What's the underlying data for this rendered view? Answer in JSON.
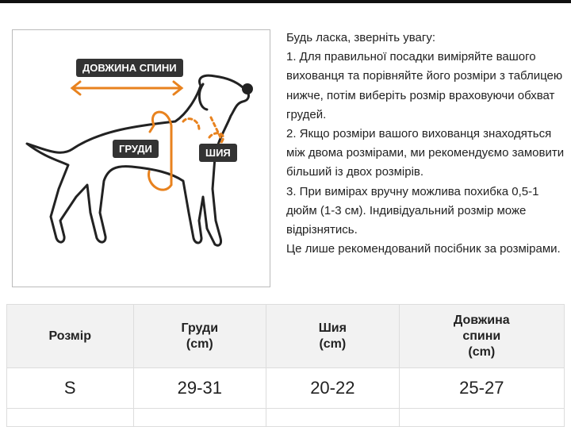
{
  "figure": {
    "labels": {
      "back_length": "ДОВЖИНА СПИНИ",
      "chest": "ГРУДИ",
      "neck": "ШИЯ"
    },
    "accent_color": "#e8821e",
    "outline_color": "#222222"
  },
  "notes": [
    "Будь ласка, зверніть увагу:",
    "1. Для правильної посадки виміряйте вашого вихованця та порівняйте його розміри з таблицею нижче, потім виберіть розмір враховуючи обхват грудей.",
    "2. Якщо розміри вашого вихованця знаходяться між двома розмірами, ми рекомендуємо замовити більший із двох розмірів.",
    "3. При вимірах вручну можлива похибка 0,5-1 дюйм (1-3 см). Індивідуальний розмір може відрізнятись.",
    "Це лише рекомендований посібник за розмірами."
  ],
  "table": {
    "headers": [
      [
        "Розмір"
      ],
      [
        "Груди",
        "(cm)"
      ],
      [
        "Шия",
        "(cm)"
      ],
      [
        "Довжина",
        "спини",
        "(cm)"
      ]
    ],
    "rows": [
      [
        "S",
        "29-31",
        "20-22",
        "25-27"
      ]
    ]
  }
}
